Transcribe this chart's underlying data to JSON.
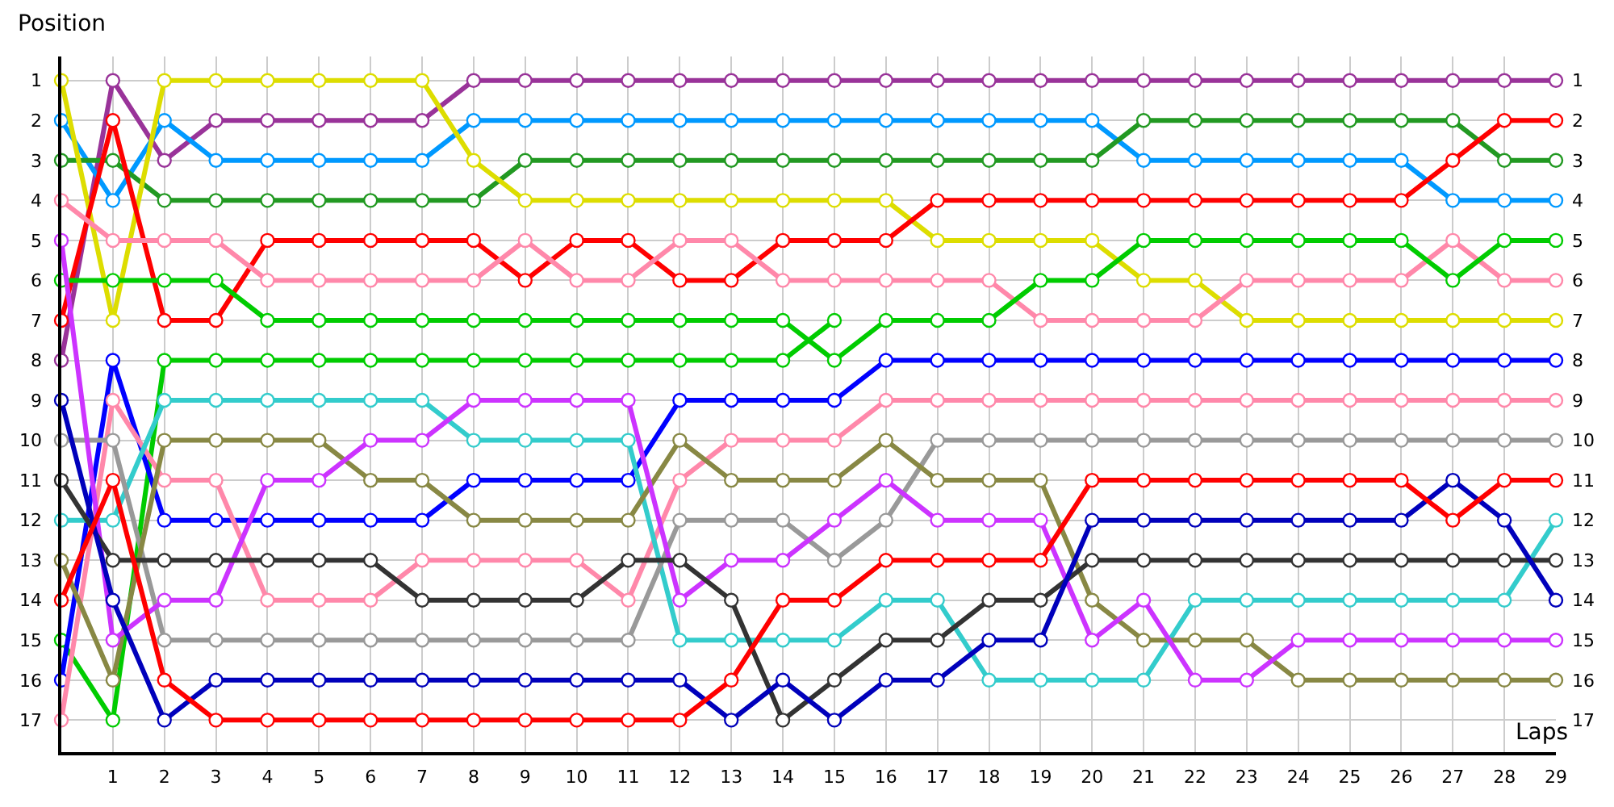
{
  "chart_data": {
    "type": "line",
    "xlabel": "Laps",
    "ylabel": "Position",
    "x": [
      0,
      1,
      2,
      3,
      4,
      5,
      6,
      7,
      8,
      9,
      10,
      11,
      12,
      13,
      14,
      15,
      16,
      17,
      18,
      19,
      20,
      21,
      22,
      23,
      24,
      25,
      26,
      27,
      28,
      29
    ],
    "xlim": [
      0,
      29
    ],
    "xticks": [
      1,
      2,
      3,
      4,
      5,
      6,
      7,
      8,
      9,
      10,
      11,
      12,
      13,
      14,
      15,
      16,
      17,
      18,
      19,
      20,
      21,
      22,
      23,
      24,
      25,
      26,
      27,
      28,
      29
    ],
    "ylim": [
      17.8,
      0.4
    ],
    "yticks": [
      1,
      2,
      3,
      4,
      5,
      6,
      7,
      8,
      9,
      10,
      11,
      12,
      13,
      14,
      15,
      16,
      17
    ],
    "y2lim": [
      17.8,
      0.4
    ],
    "y2ticks": [
      1,
      2,
      3,
      4,
      5,
      6,
      7,
      8,
      9,
      10,
      11,
      12,
      13,
      14,
      15,
      16,
      17
    ],
    "grid": true,
    "marker": "circle",
    "line_style": "solid",
    "series": [
      {
        "color": "#993399",
        "values": [
          8,
          1,
          3,
          2,
          2,
          2,
          2,
          2,
          1,
          1,
          1,
          1,
          1,
          1,
          1,
          1,
          1,
          1,
          1,
          1,
          1,
          1,
          1,
          1,
          1,
          1,
          1,
          1,
          1,
          1
        ]
      },
      {
        "color": "#0099ff",
        "values": [
          2,
          4,
          2,
          3,
          3,
          3,
          3,
          3,
          2,
          2,
          2,
          2,
          2,
          2,
          2,
          2,
          2,
          2,
          2,
          2,
          2,
          3,
          3,
          3,
          3,
          3,
          3,
          4,
          4,
          4
        ]
      },
      {
        "color": "#229922",
        "values": [
          3,
          3,
          4,
          4,
          4,
          4,
          4,
          4,
          4,
          3,
          3,
          3,
          3,
          3,
          3,
          3,
          3,
          3,
          3,
          3,
          3,
          2,
          2,
          2,
          2,
          2,
          2,
          2,
          3,
          3
        ]
      },
      {
        "color": "#dddd00",
        "values": [
          1,
          7,
          1,
          1,
          1,
          1,
          1,
          1,
          3,
          4,
          4,
          4,
          4,
          4,
          4,
          4,
          4,
          5,
          5,
          5,
          5,
          6,
          6,
          7,
          7,
          7,
          7,
          7,
          7,
          7
        ]
      },
      {
        "color": "#ff0000",
        "values": [
          7,
          2,
          7,
          7,
          5,
          5,
          5,
          5,
          5,
          6,
          5,
          5,
          6,
          6,
          5,
          5,
          5,
          4,
          4,
          4,
          4,
          4,
          4,
          4,
          4,
          4,
          4,
          3,
          2,
          2
        ]
      },
      {
        "color": "#ff88aa",
        "values": [
          4,
          5,
          5,
          5,
          6,
          6,
          6,
          6,
          6,
          5,
          6,
          6,
          5,
          5,
          6,
          6,
          6,
          6,
          6,
          7,
          7,
          7,
          7,
          6,
          6,
          6,
          6,
          5,
          6,
          6
        ]
      },
      {
        "color": "#00cc00",
        "values": [
          6,
          6,
          6,
          6,
          7,
          7,
          7,
          7,
          7,
          7,
          7,
          7,
          7,
          7,
          7,
          8,
          7,
          7,
          7,
          6,
          6,
          5,
          5,
          5,
          5,
          5,
          5,
          6,
          5,
          5
        ]
      },
      {
        "color": "#00cc00",
        "values": [
          15,
          17,
          8,
          8,
          8,
          8,
          8,
          8,
          8,
          8,
          8,
          8,
          8,
          8,
          8,
          7,
          null,
          null,
          null,
          null,
          null,
          null,
          null,
          null,
          null,
          null,
          null,
          null,
          null,
          null
        ]
      },
      {
        "color": "#0000ff",
        "values": [
          16,
          8,
          12,
          12,
          12,
          12,
          12,
          12,
          11,
          11,
          11,
          11,
          9,
          9,
          9,
          9,
          8,
          8,
          8,
          8,
          8,
          8,
          8,
          8,
          8,
          8,
          8,
          8,
          8,
          8
        ]
      },
      {
        "color": "#ff88aa",
        "values": [
          17,
          9,
          11,
          11,
          14,
          14,
          14,
          13,
          13,
          13,
          13,
          14,
          11,
          10,
          10,
          10,
          9,
          9,
          9,
          9,
          9,
          9,
          9,
          9,
          9,
          9,
          9,
          9,
          9,
          9
        ]
      },
      {
        "color": "#33cccc",
        "values": [
          12,
          12,
          9,
          9,
          9,
          9,
          9,
          9,
          10,
          10,
          10,
          10,
          15,
          15,
          15,
          15,
          14,
          14,
          16,
          16,
          16,
          16,
          14,
          14,
          14,
          14,
          14,
          14,
          14,
          12
        ]
      },
      {
        "color": "#999999",
        "values": [
          10,
          10,
          15,
          15,
          15,
          15,
          15,
          15,
          15,
          15,
          15,
          15,
          12,
          12,
          12,
          13,
          12,
          10,
          10,
          10,
          10,
          10,
          10,
          10,
          10,
          10,
          10,
          10,
          10,
          10
        ]
      },
      {
        "color": "#888844",
        "values": [
          13,
          16,
          10,
          10,
          10,
          10,
          11,
          11,
          12,
          12,
          12,
          12,
          10,
          11,
          11,
          11,
          10,
          11,
          11,
          11,
          14,
          15,
          15,
          15,
          16,
          16,
          16,
          16,
          16,
          16
        ]
      },
      {
        "color": "#cc33ff",
        "values": [
          5,
          15,
          14,
          14,
          11,
          11,
          10,
          10,
          9,
          9,
          9,
          9,
          14,
          13,
          13,
          12,
          11,
          12,
          12,
          12,
          15,
          14,
          16,
          16,
          15,
          15,
          15,
          15,
          15,
          15
        ]
      },
      {
        "color": "#333333",
        "values": [
          11,
          13,
          13,
          13,
          13,
          13,
          13,
          14,
          14,
          14,
          14,
          13,
          13,
          14,
          17,
          16,
          15,
          15,
          14,
          14,
          13,
          13,
          13,
          13,
          13,
          13,
          13,
          13,
          13,
          13
        ]
      },
      {
        "color": "#0000bb",
        "values": [
          9,
          14,
          17,
          16,
          16,
          16,
          16,
          16,
          16,
          16,
          16,
          16,
          16,
          17,
          16,
          17,
          16,
          16,
          15,
          15,
          12,
          12,
          12,
          12,
          12,
          12,
          12,
          11,
          12,
          14
        ]
      },
      {
        "color": "#ff0000",
        "values": [
          14,
          11,
          16,
          17,
          17,
          17,
          17,
          17,
          17,
          17,
          17,
          17,
          17,
          16,
          14,
          14,
          13,
          13,
          13,
          13,
          11,
          11,
          11,
          11,
          11,
          11,
          11,
          12,
          11,
          11
        ]
      }
    ]
  }
}
